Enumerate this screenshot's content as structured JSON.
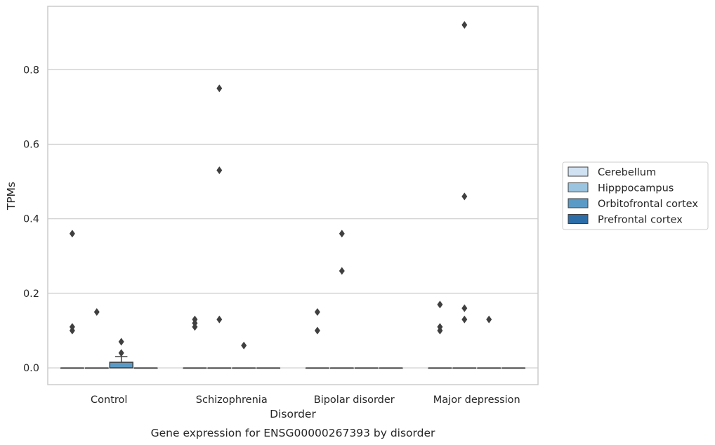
{
  "chart_data": {
    "type": "box",
    "title": "",
    "caption": "Gene expression for ENSG00000267393 by disorder",
    "xlabel": "Disorder",
    "ylabel": "TPMs",
    "ylim": [
      -0.045,
      0.97
    ],
    "yticks": [
      0.0,
      0.2,
      0.4,
      0.6,
      0.8
    ],
    "ytick_labels": [
      "0.0",
      "0.2",
      "0.4",
      "0.6",
      "0.8"
    ],
    "grid": "horizontal",
    "legend_position": "right",
    "categories": [
      "Control",
      "Schizophrenia",
      "Bipolar disorder",
      "Major depression"
    ],
    "series": [
      {
        "name": "Cerebellum",
        "color": "#d0e2f2",
        "boxes": [
          {
            "q1": 0,
            "median": 0,
            "q3": 0,
            "whisker_low": 0,
            "whisker_high": 0,
            "outliers": [
              0.1,
              0.11,
              0.36
            ]
          },
          {
            "q1": 0,
            "median": 0,
            "q3": 0,
            "whisker_low": 0,
            "whisker_high": 0,
            "outliers": [
              0.11,
              0.12,
              0.13
            ]
          },
          {
            "q1": 0,
            "median": 0,
            "q3": 0,
            "whisker_low": 0,
            "whisker_high": 0,
            "outliers": [
              0.1,
              0.15
            ]
          },
          {
            "q1": 0,
            "median": 0,
            "q3": 0,
            "whisker_low": 0,
            "whisker_high": 0,
            "outliers": [
              0.1,
              0.11,
              0.17
            ]
          }
        ]
      },
      {
        "name": "Hipppocampus",
        "color": "#9ac4e0",
        "boxes": [
          {
            "q1": 0,
            "median": 0,
            "q3": 0,
            "whisker_low": 0,
            "whisker_high": 0,
            "outliers": [
              0.15
            ]
          },
          {
            "q1": 0,
            "median": 0,
            "q3": 0,
            "whisker_low": 0,
            "whisker_high": 0,
            "outliers": [
              0.13,
              0.53,
              0.75
            ]
          },
          {
            "q1": 0,
            "median": 0,
            "q3": 0,
            "whisker_low": 0,
            "whisker_high": 0,
            "outliers": [
              0.26,
              0.36
            ]
          },
          {
            "q1": 0,
            "median": 0,
            "q3": 0,
            "whisker_low": 0,
            "whisker_high": 0,
            "outliers": [
              0.13,
              0.16,
              0.46,
              0.92
            ]
          }
        ]
      },
      {
        "name": "Orbitofrontal cortex",
        "color": "#5a9ac6",
        "boxes": [
          {
            "q1": 0,
            "median": 0,
            "q3": 0.015,
            "whisker_low": 0,
            "whisker_high": 0.03,
            "outliers": [
              0.04,
              0.07
            ]
          },
          {
            "q1": 0,
            "median": 0,
            "q3": 0,
            "whisker_low": 0,
            "whisker_high": 0,
            "outliers": [
              0.06
            ]
          },
          {
            "q1": 0,
            "median": 0,
            "q3": 0,
            "whisker_low": 0,
            "whisker_high": 0,
            "outliers": []
          },
          {
            "q1": 0,
            "median": 0,
            "q3": 0,
            "whisker_low": 0,
            "whisker_high": 0,
            "outliers": [
              0.13
            ]
          }
        ]
      },
      {
        "name": "Prefrontal cortex",
        "color": "#2d6ea8",
        "boxes": [
          {
            "q1": 0,
            "median": 0,
            "q3": 0,
            "whisker_low": 0,
            "whisker_high": 0,
            "outliers": []
          },
          {
            "q1": 0,
            "median": 0,
            "q3": 0,
            "whisker_low": 0,
            "whisker_high": 0,
            "outliers": []
          },
          {
            "q1": 0,
            "median": 0,
            "q3": 0,
            "whisker_low": 0,
            "whisker_high": 0,
            "outliers": []
          },
          {
            "q1": 0,
            "median": 0,
            "q3": 0,
            "whisker_low": 0,
            "whisker_high": 0,
            "outliers": []
          }
        ]
      }
    ],
    "colors": {
      "grid": "#cccccc",
      "frame": "#cccccc",
      "outline": "#3f3f3f",
      "text": "#262626"
    }
  }
}
